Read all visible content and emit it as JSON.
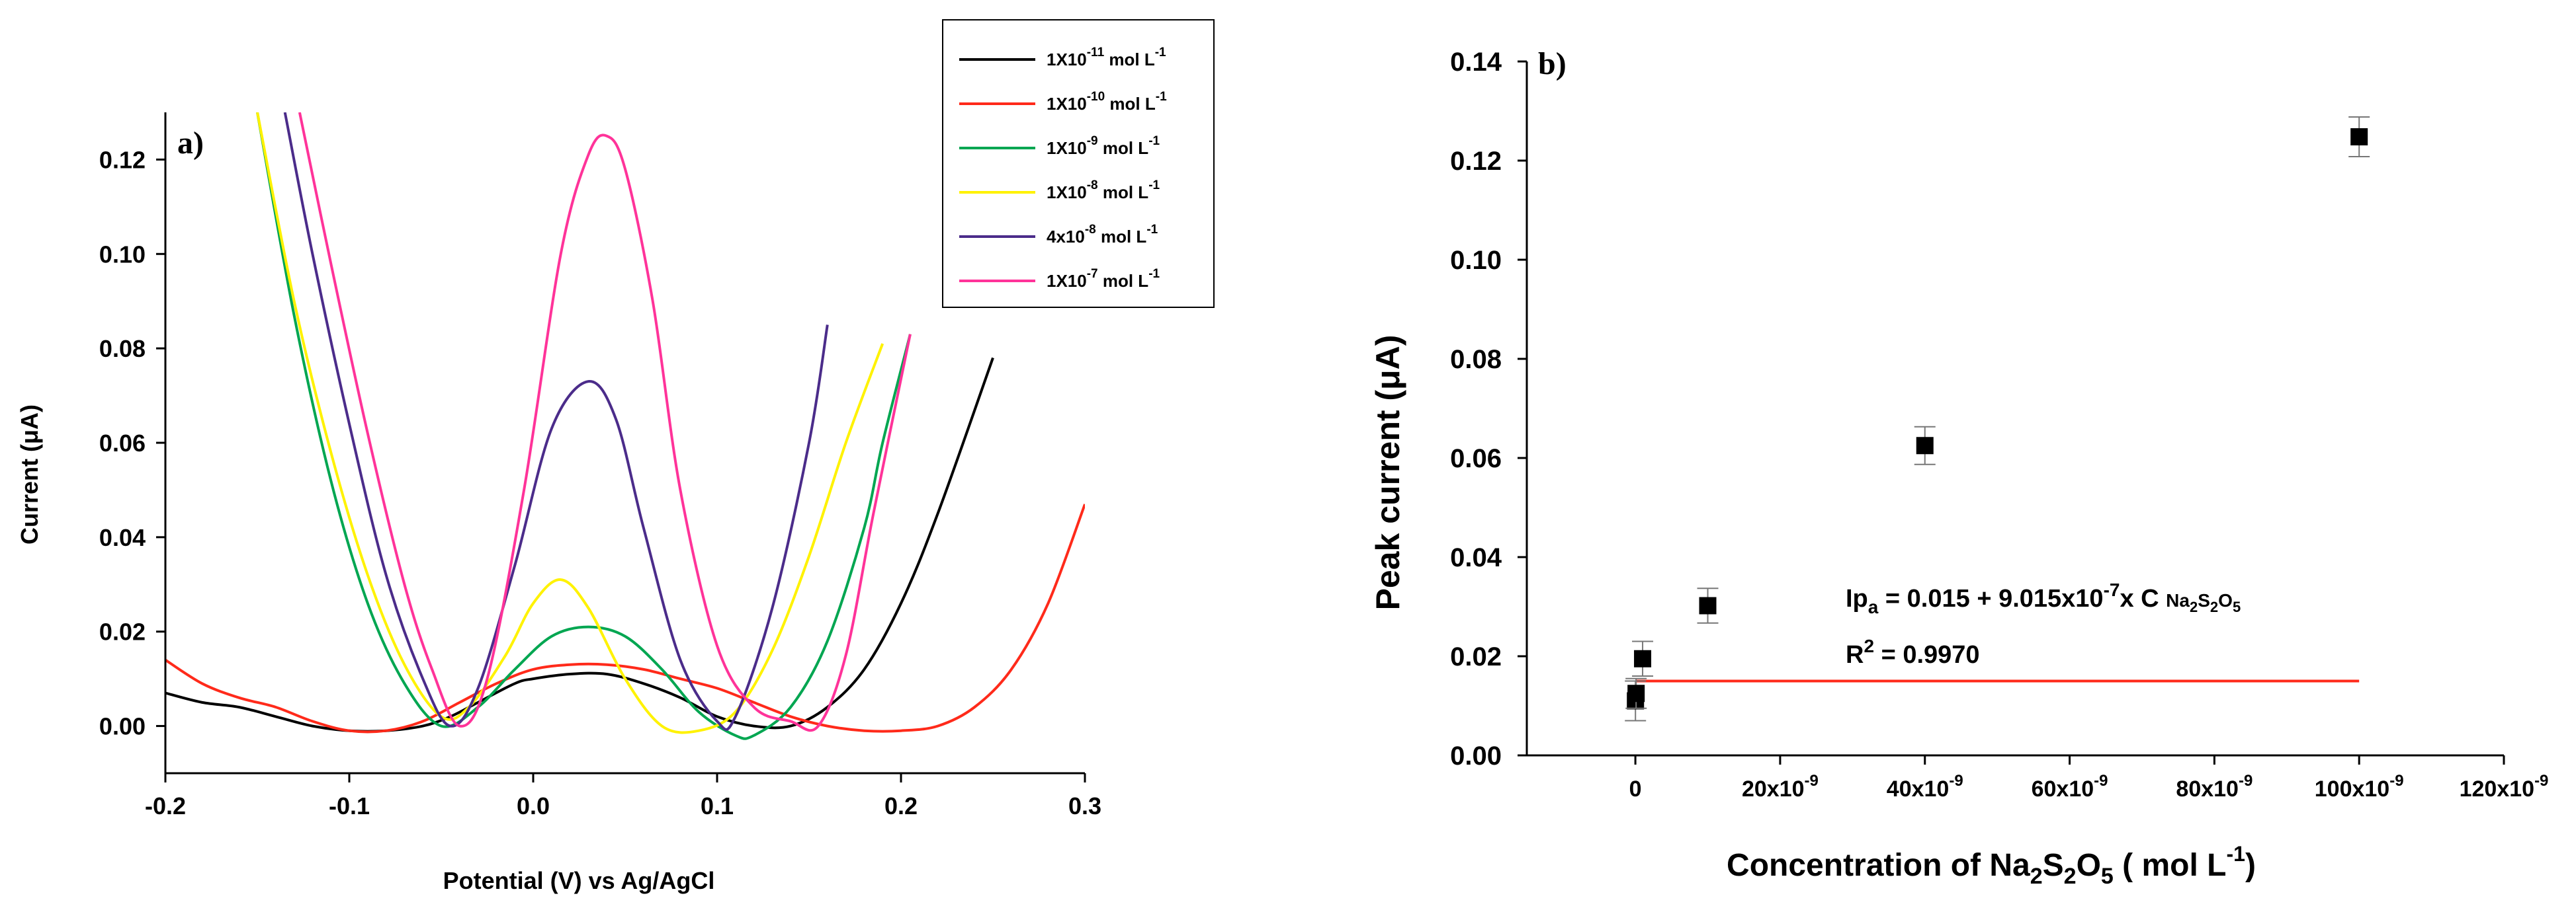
{
  "chart_data": [
    {
      "type": "line",
      "panel_label": "a)",
      "xlabel": "Potential (V) vs Ag/AgCl",
      "ylabel": "Current (μA)",
      "xlim": [
        -0.2,
        0.3
      ],
      "ylim": [
        -0.01,
        0.13
      ],
      "xticks": [
        -0.2,
        -0.1,
        0.0,
        0.1,
        0.2,
        0.3
      ],
      "xtick_labels": [
        "-0.2",
        "-0.1",
        "0.0",
        "0.1",
        "0.2",
        "0.3"
      ],
      "yticks": [
        0.0,
        0.02,
        0.04,
        0.06,
        0.08,
        0.1,
        0.12
      ],
      "ytick_labels": [
        "0.00",
        "0.02",
        "0.04",
        "0.06",
        "0.08",
        "0.10",
        "0.12"
      ],
      "grid": false,
      "legend_position": "top-right",
      "series": [
        {
          "name": "1X10-11 mol L-1",
          "legend_base": "1X10",
          "legend_exp": "-11",
          "legend_unit": "mol L",
          "legend_unit_exp": "-1",
          "color": "#000000",
          "x": [
            -0.2,
            -0.18,
            -0.16,
            -0.14,
            -0.12,
            -0.1,
            -0.08,
            -0.06,
            -0.045,
            -0.03,
            -0.01,
            0.0,
            0.02,
            0.04,
            0.06,
            0.08,
            0.1,
            0.12,
            0.14,
            0.16,
            0.18,
            0.2,
            0.22,
            0.25
          ],
          "y": [
            0.007,
            0.005,
            0.004,
            0.002,
            0.0,
            -0.001,
            -0.001,
            0.0,
            0.002,
            0.005,
            0.009,
            0.01,
            0.011,
            0.011,
            0.009,
            0.006,
            0.002,
            0.0,
            0.0,
            0.004,
            0.012,
            0.026,
            0.045,
            0.078
          ]
        },
        {
          "name": "1X10-10 mol L-1",
          "legend_base": "1X10",
          "legend_exp": "-10",
          "legend_unit": "mol L",
          "legend_unit_exp": "-1",
          "color": "#ff2a1a",
          "x": [
            -0.2,
            -0.18,
            -0.16,
            -0.14,
            -0.12,
            -0.1,
            -0.08,
            -0.06,
            -0.04,
            -0.02,
            0.0,
            0.02,
            0.04,
            0.06,
            0.08,
            0.1,
            0.12,
            0.14,
            0.16,
            0.18,
            0.2,
            0.22,
            0.24,
            0.26,
            0.28,
            0.3
          ],
          "y": [
            0.014,
            0.009,
            0.006,
            0.004,
            0.001,
            -0.001,
            -0.001,
            0.001,
            0.005,
            0.009,
            0.012,
            0.013,
            0.013,
            0.012,
            0.01,
            0.008,
            0.005,
            0.002,
            0.0,
            -0.001,
            -0.001,
            0.0,
            0.004,
            0.012,
            0.026,
            0.047
          ]
        },
        {
          "name": "1X10-9 mol L-1",
          "legend_base": "1X10",
          "legend_exp": "-9",
          "legend_unit": "mol L",
          "legend_unit_exp": "-1",
          "color": "#00a651",
          "x": [
            -0.15,
            -0.13,
            -0.11,
            -0.09,
            -0.07,
            -0.05,
            -0.03,
            -0.01,
            0.01,
            0.03,
            0.05,
            0.07,
            0.09,
            0.11,
            0.12,
            0.14,
            0.16,
            0.18,
            0.19,
            0.205
          ],
          "y": [
            0.13,
            0.087,
            0.052,
            0.026,
            0.009,
            0.0,
            0.004,
            0.012,
            0.019,
            0.021,
            0.019,
            0.012,
            0.003,
            -0.002,
            -0.002,
            0.004,
            0.018,
            0.042,
            0.06,
            0.083
          ]
        },
        {
          "name": "1X10-8 mol L-1",
          "legend_base": "1X10",
          "legend_exp": "-8",
          "legend_unit": "mol L",
          "legend_unit_exp": "-1",
          "color": "#fff200",
          "x": [
            -0.15,
            -0.13,
            -0.11,
            -0.09,
            -0.07,
            -0.05,
            -0.035,
            -0.015,
            0.0,
            0.015,
            0.03,
            0.05,
            0.07,
            0.09,
            0.11,
            0.13,
            0.15,
            0.17,
            0.19
          ],
          "y": [
            0.13,
            0.09,
            0.058,
            0.032,
            0.013,
            0.002,
            0.004,
            0.015,
            0.026,
            0.031,
            0.025,
            0.01,
            0.0,
            -0.001,
            0.003,
            0.016,
            0.036,
            0.06,
            0.081
          ]
        },
        {
          "name": "4x10-8 mol L-1",
          "legend_base": "4x10",
          "legend_exp": "-8",
          "legend_unit": "mol L",
          "legend_unit_exp": "-1",
          "color": "#4b2c8a",
          "x": [
            -0.135,
            -0.12,
            -0.1,
            -0.08,
            -0.06,
            -0.045,
            -0.03,
            -0.01,
            0.01,
            0.03,
            0.045,
            0.06,
            0.08,
            0.1,
            0.11,
            0.13,
            0.15,
            0.16
          ],
          "y": [
            0.13,
            0.1,
            0.064,
            0.032,
            0.01,
            0.0,
            0.008,
            0.034,
            0.063,
            0.073,
            0.065,
            0.042,
            0.014,
            0.001,
            0.002,
            0.025,
            0.06,
            0.085
          ]
        },
        {
          "name": "1X10-7 mol L-1",
          "legend_base": "1X10",
          "legend_exp": "-7",
          "legend_unit": "mol L",
          "legend_unit_exp": "-1",
          "color": "#ff3399",
          "x": [
            -0.127,
            -0.11,
            -0.09,
            -0.07,
            -0.055,
            -0.04,
            -0.025,
            -0.005,
            0.015,
            0.03,
            0.04,
            0.05,
            0.065,
            0.08,
            0.1,
            0.12,
            0.14,
            0.155,
            0.17,
            0.185,
            0.205
          ],
          "y": [
            0.13,
            0.098,
            0.062,
            0.03,
            0.012,
            0.0,
            0.01,
            0.05,
            0.1,
            0.121,
            0.125,
            0.118,
            0.09,
            0.05,
            0.017,
            0.004,
            0.001,
            0.0,
            0.015,
            0.045,
            0.083
          ]
        }
      ]
    },
    {
      "type": "scatter",
      "panel_label": "b)",
      "xlabel_prefix": "Concentration of Na",
      "xlabel_sub1": "2",
      "xlabel_mid": "S",
      "xlabel_sub2": "2",
      "xlabel_mid2": "O",
      "xlabel_sub3": "5",
      "xlabel_unit": " ( mol L",
      "xlabel_unit_exp": "-1",
      "xlabel_close": ")",
      "ylabel": "Peak current (μA)",
      "xlim": [
        -1.5e-08,
        1.2e-07
      ],
      "ylim": [
        0.0,
        0.14
      ],
      "xticks": [
        0,
        2e-08,
        4e-08,
        6e-08,
        8e-08,
        1e-07,
        1.2e-07
      ],
      "xtick_labels": [
        "0",
        "20x10-9",
        "40x10-9",
        "60x10-9",
        "80x10-9",
        "100x10-9",
        "120x10-9"
      ],
      "xtick_base": [
        "0",
        "20x10",
        "40x10",
        "60x10",
        "80x10",
        "100x10",
        "120x10"
      ],
      "xtick_exp": [
        "",
        "-9",
        "-9",
        "-9",
        "-9",
        "-9",
        "-9"
      ],
      "yticks": [
        0.0,
        0.02,
        0.04,
        0.06,
        0.08,
        0.1,
        0.12,
        0.14
      ],
      "ytick_labels": [
        "0.00",
        "0.02",
        "0.04",
        "0.06",
        "0.08",
        "0.10",
        "0.12",
        "0.14"
      ],
      "grid": false,
      "points": [
        {
          "x": 1e-11,
          "y": 0.011,
          "err": 0.004
        },
        {
          "x": 1e-10,
          "y": 0.0125,
          "err": 0.003
        },
        {
          "x": 1e-09,
          "y": 0.0195,
          "err": 0.0035
        },
        {
          "x": 1e-08,
          "y": 0.0302,
          "err": 0.0035
        },
        {
          "x": 4e-08,
          "y": 0.0625,
          "err": 0.0038
        },
        {
          "x": 1e-07,
          "y": 0.1248,
          "err": 0.004
        }
      ],
      "fit_line": {
        "intercept": 0.015,
        "slope": 9.015e-07,
        "x_range": [
          0,
          1e-07
        ],
        "color": "#ff2a1a"
      },
      "annotations": {
        "eq_lhs": "Ip",
        "eq_lhs_sub": "a",
        "eq_mid": " = 0.015 + 9.015x10",
        "eq_exp": "-7",
        "eq_rhs": "x C ",
        "eq_species": "Na",
        "eq_s1": "2",
        "eq_species2": "S",
        "eq_s2": "2",
        "eq_species3": "O",
        "eq_s3": "5",
        "r2_lhs": "R",
        "r2_exp": "2",
        "r2_rhs": " = 0.9970"
      }
    }
  ]
}
